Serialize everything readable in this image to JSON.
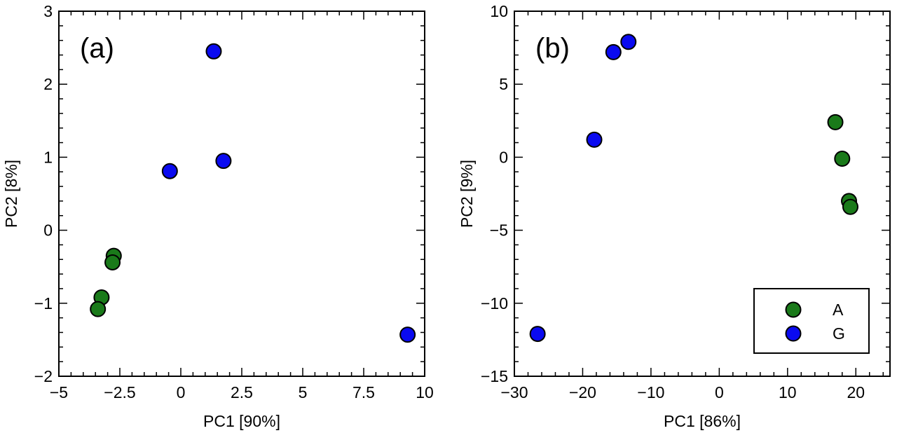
{
  "colors": {
    "A": "#1a7a1a",
    "G": "#0a0af0",
    "axis": "#000000"
  },
  "legend": {
    "items": [
      {
        "key": "A",
        "label": "A"
      },
      {
        "key": "G",
        "label": "G"
      }
    ],
    "placement": "bottom-right of panel b"
  },
  "chart_data": [
    {
      "type": "scatter",
      "panel_label": "(a)",
      "xlabel": "PC1 [90%]",
      "ylabel": "PC2 [8%]",
      "xlim": [
        -5,
        10
      ],
      "ylim": [
        -2,
        3
      ],
      "xticks": [
        -5,
        -2.5,
        0,
        2.5,
        5,
        7.5,
        10
      ],
      "xtick_labels": [
        "−5",
        "−2.5",
        "0",
        "2.5",
        "5",
        "7.5",
        "10"
      ],
      "yticks": [
        -2,
        -1,
        0,
        1,
        2,
        3
      ],
      "ytick_labels": [
        "−2",
        "−1",
        "0",
        "1",
        "2",
        "3"
      ],
      "series": [
        {
          "name": "A",
          "points": [
            {
              "x": -2.75,
              "y": -0.35
            },
            {
              "x": -2.8,
              "y": -0.44
            },
            {
              "x": -3.25,
              "y": -0.92
            },
            {
              "x": -3.4,
              "y": -1.08
            }
          ]
        },
        {
          "name": "G",
          "points": [
            {
              "x": 1.35,
              "y": 2.45
            },
            {
              "x": -0.45,
              "y": 0.81
            },
            {
              "x": 1.75,
              "y": 0.95
            },
            {
              "x": 9.3,
              "y": -1.43
            }
          ]
        }
      ]
    },
    {
      "type": "scatter",
      "panel_label": "(b)",
      "xlabel": "PC1 [86%]",
      "ylabel": "PC2 [9%]",
      "xlim": [
        -30,
        25
      ],
      "ylim": [
        -15,
        10
      ],
      "xticks": [
        -30,
        -20,
        -10,
        0,
        10,
        20
      ],
      "xtick_labels": [
        "−30",
        "−20",
        "−10",
        "0",
        "10",
        "20"
      ],
      "yticks": [
        -15,
        -10,
        -5,
        0,
        5,
        10
      ],
      "ytick_labels": [
        "−15",
        "−10",
        "−5",
        "0",
        "5",
        "10"
      ],
      "series": [
        {
          "name": "A",
          "points": [
            {
              "x": 17.0,
              "y": 2.4
            },
            {
              "x": 18.0,
              "y": -0.1
            },
            {
              "x": 19.0,
              "y": -3.0
            },
            {
              "x": 19.2,
              "y": -3.4
            }
          ]
        },
        {
          "name": "G",
          "points": [
            {
              "x": -15.5,
              "y": 7.2
            },
            {
              "x": -13.3,
              "y": 7.9
            },
            {
              "x": -18.3,
              "y": 1.2
            },
            {
              "x": -26.6,
              "y": -12.1
            }
          ]
        }
      ]
    }
  ]
}
